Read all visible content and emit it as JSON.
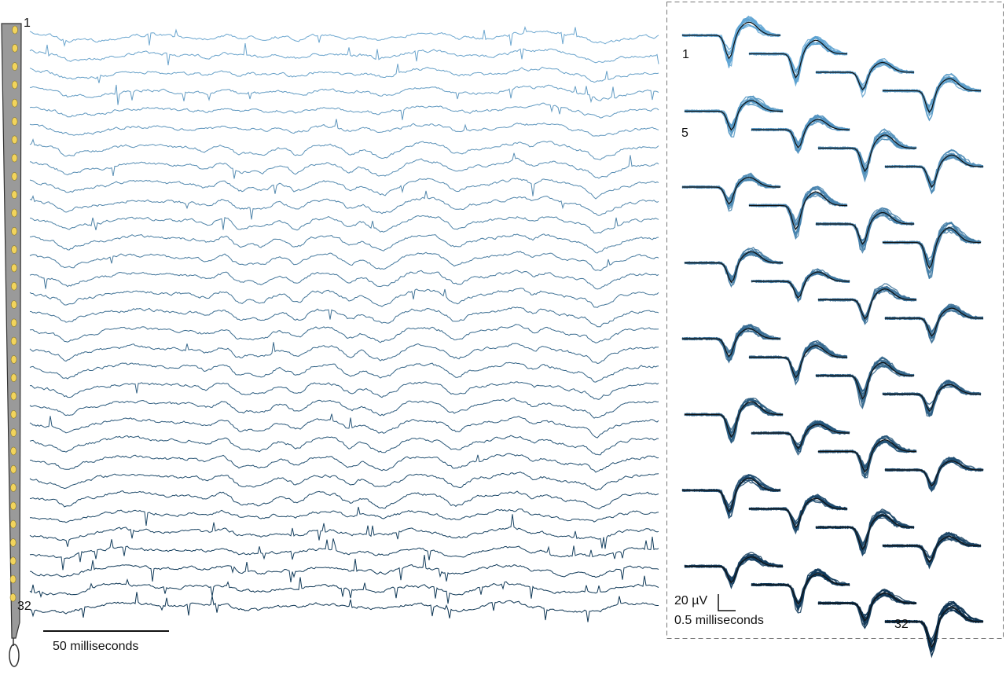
{
  "probe": {
    "top_label": "1",
    "bottom_label": "32"
  },
  "traces": {
    "scale_label": "50 milliseconds"
  },
  "waveforms": {
    "first_label": "1",
    "fifth_label": "5",
    "last_label": "32",
    "amplitude_scale": "20 µV",
    "time_scale": "0.5 milliseconds"
  }
}
